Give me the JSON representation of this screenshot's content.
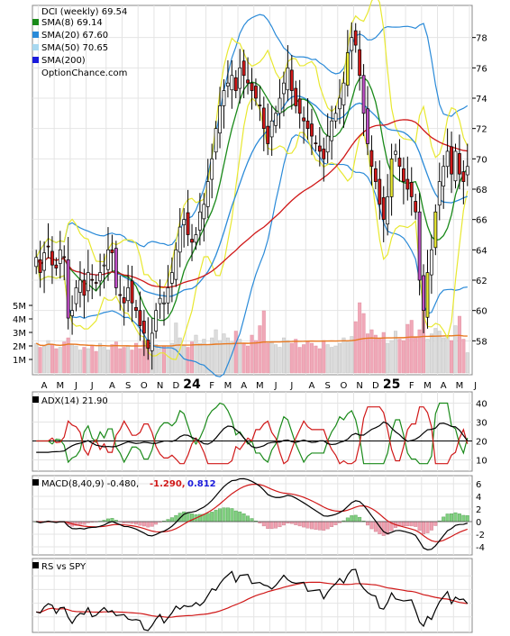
{
  "chart_data": {
    "type": "candlestick",
    "title": "DCI (weekly) 69.54",
    "price_panel": {
      "legend": [
        {
          "label": "SMA(8) 69.14",
          "color": "#1a8a1a"
        },
        {
          "label": "SMA(20) 67.60",
          "color": "#2a8ad8"
        },
        {
          "label": "SMA(50) 70.65",
          "color": "#a8d8f0"
        },
        {
          "label": "SMA(200)",
          "color": "#1a1adc"
        }
      ],
      "watermark": "OptionChance.com",
      "ylim": [
        56,
        80
      ],
      "yticks": [
        58,
        60,
        62,
        64,
        66,
        68,
        70,
        72,
        74,
        76,
        78
      ],
      "volume_ticks": [
        "1M",
        "2M",
        "3M",
        "4M",
        "5M"
      ],
      "month_labels": [
        "A",
        "M",
        "J",
        "J",
        "A",
        "S",
        "O",
        "N",
        "D",
        "24",
        "F",
        "M",
        "A",
        "M",
        "J",
        "J",
        "A",
        "S",
        "O",
        "N",
        "D",
        "25",
        "F",
        "M",
        "A",
        "M",
        "J"
      ],
      "weekly_close": [
        63.5,
        62.5,
        63.8,
        64.2,
        63.0,
        62.8,
        64.0,
        63.5,
        59.5,
        60.0,
        61.5,
        62.0,
        61.0,
        62.5,
        62.0,
        61.8,
        62.5,
        63.0,
        64.0,
        63.8,
        61.5,
        61.0,
        60.5,
        61.5,
        60.5,
        60.0,
        59.0,
        58.5,
        57.5,
        58.5,
        60.0,
        60.8,
        60.5,
        61.5,
        62.5,
        64.0,
        65.5,
        66.0,
        65.0,
        64.5,
        65.0,
        66.5,
        67.0,
        68.5,
        70.0,
        72.0,
        73.5,
        74.5,
        75.0,
        75.5,
        74.5,
        76.0,
        75.5,
        75.0,
        74.5,
        74.0,
        73.5,
        72.0,
        71.0,
        72.5,
        73.0,
        74.0,
        75.0,
        76.0,
        74.5,
        73.5,
        73.0,
        72.5,
        72.0,
        71.5,
        71.0,
        70.5,
        70.0,
        71.5,
        72.5,
        73.0,
        74.0,
        75.0,
        77.0,
        78.0,
        77.5,
        75.5,
        73.0,
        71.0,
        69.5,
        68.5,
        67.0,
        66.0,
        67.5,
        70.0,
        70.5,
        69.5,
        68.5,
        68.0,
        67.5,
        66.5,
        62.0,
        60.0,
        62.5,
        64.0,
        66.5,
        68.5,
        69.5,
        70.5,
        69.0,
        70.5,
        69.0,
        68.5,
        69.5
      ],
      "weekly_volume_m": [
        2.2,
        1.9,
        2.0,
        2.4,
        2.1,
        1.8,
        1.9,
        2.3,
        2.6,
        2.1,
        2.0,
        1.7,
        1.9,
        1.8,
        2.0,
        1.6,
        2.2,
        1.9,
        1.7,
        2.1,
        2.3,
        1.8,
        1.9,
        2.0,
        1.7,
        2.2,
        1.8,
        2.4,
        2.0,
        1.9,
        2.1,
        1.8,
        2.0,
        1.9,
        2.2,
        3.7,
        2.6,
        2.0,
        1.9,
        2.3,
        2.8,
        2.2,
        2.5,
        2.1,
        2.6,
        3.2,
        2.4,
        2.9,
        2.6,
        2.3,
        3.1,
        2.5,
        2.2,
        2.0,
        2.8,
        2.4,
        3.5,
        4.6,
        2.2,
        2.3,
        2.1,
        1.9,
        2.6,
        2.4,
        2.2,
        2.5,
        1.9,
        2.1,
        2.3,
        2.2,
        2.0,
        1.8,
        2.4,
        2.1,
        1.9,
        2.0,
        2.2,
        2.6,
        2.3,
        2.7,
        3.8,
        5.2,
        4.4,
        2.9,
        3.2,
        2.8,
        2.6,
        3.0,
        2.2,
        2.4,
        3.1,
        2.5,
        2.4,
        3.6,
        3.9,
        2.7,
        3.2,
        4.7,
        2.5,
        2.9,
        3.3,
        3.1,
        2.6,
        2.7,
        2.4,
        3.5,
        4.2,
        2.5,
        1.5
      ]
    },
    "adx_panel": {
      "label": "ADX(14) 21.90",
      "yticks": [
        10,
        20,
        30,
        40
      ],
      "ylim": [
        5,
        45
      ],
      "ref_line": 20
    },
    "macd_panel": {
      "label": "MACD(8,40,9) -0.480,",
      "label_red": "-1.290,",
      "label_blue": "0.812",
      "yticks": [
        -4,
        -2,
        0,
        2,
        4,
        6
      ],
      "ylim": [
        -5,
        7
      ]
    },
    "rs_panel": {
      "label": "RS vs SPY"
    },
    "colors": {
      "up": "#ffffff",
      "down": "#d01818",
      "black": "#000000",
      "red": "#d01818",
      "green": "#1a8a1a",
      "blue": "#2a8ad8",
      "yellow": "#e8e830",
      "purple": "#c050c8",
      "vol_up": "#dcdcdc",
      "vol_down": "#f0a8b8",
      "orange": "#e87820",
      "macd_pos": "#80d080",
      "macd_neg": "#f0a0b0"
    }
  }
}
